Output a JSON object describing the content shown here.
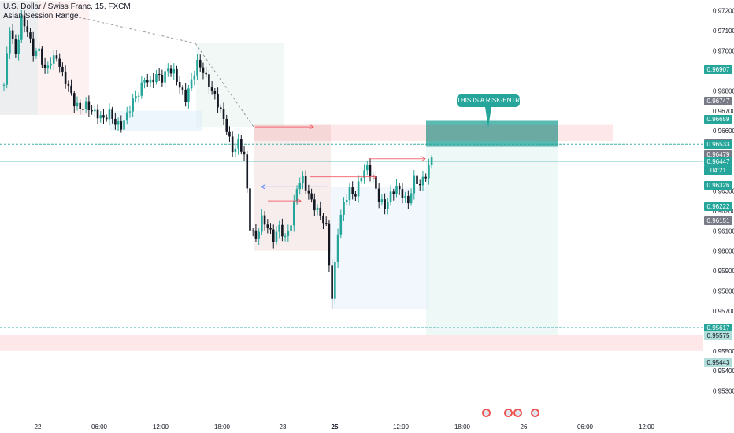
{
  "header": {
    "title": "U.S. Dollar / Swiss Franc, 15, FXCM",
    "indicator": "Asian Session Range"
  },
  "annotation": {
    "callout_text": "THIS IS A RISK-ENTRY"
  },
  "colors": {
    "up": "#26a69a",
    "down": "#131722",
    "zone_red": "#f23645",
    "zone_teal": "#26a69a",
    "zone_blue": "#2962ff",
    "axis_text": "#131722"
  },
  "chart_data": {
    "type": "candlestick",
    "symbol": "USDCHF",
    "timeframe": "15",
    "ylim": [
      0.952,
      0.9725
    ],
    "y_ticks": [
      0.972,
      0.971,
      0.97,
      0.968,
      0.967,
      0.966,
      0.963,
      0.962,
      0.961,
      0.96,
      0.959,
      0.958,
      0.957,
      0.955,
      0.954,
      0.953
    ],
    "x_ticks": [
      "22",
      "06:00",
      "12:00",
      "18:00",
      "23",
      "25",
      "12:00",
      "18:00",
      "26",
      "06:00",
      "12:00"
    ],
    "x_tick_bold": [
      "25"
    ],
    "price_tags": [
      {
        "label": "0.96907",
        "value": 0.96907,
        "style": "teal"
      },
      {
        "label": "0.96747",
        "value": 0.96747,
        "style": "gray"
      },
      {
        "label": "0.96659",
        "value": 0.96659,
        "style": "teal"
      },
      {
        "label": "0.96534",
        "value": 0.96534,
        "style": "gray"
      },
      {
        "label": "0.96533",
        "value": 0.96533,
        "style": "teal"
      },
      {
        "label": "0.96479",
        "value": 0.96479,
        "style": "gray"
      },
      {
        "label": "0.96447",
        "value": 0.96447,
        "style": "teal"
      },
      {
        "label": "0.96326",
        "value": 0.96326,
        "style": "teal"
      },
      {
        "label": "0.96222",
        "value": 0.96222,
        "style": "teal"
      },
      {
        "label": "0.96151",
        "value": 0.96151,
        "style": "gray"
      },
      {
        "label": "0.95617",
        "value": 0.95617,
        "style": "teal"
      },
      {
        "label": "0.95575",
        "value": 0.95575,
        "style": "light"
      },
      {
        "label": "0.95443",
        "value": 0.95443,
        "style": "light"
      }
    ],
    "countdown": "04:21",
    "horizontal_lines": [
      0.96533,
      0.96447,
      0.95617
    ],
    "close_path": [
      [
        0,
        0.9683
      ],
      [
        2,
        0.9712
      ],
      [
        4,
        0.9698
      ],
      [
        6,
        0.9716
      ],
      [
        8,
        0.971
      ],
      [
        10,
        0.9699
      ],
      [
        12,
        0.97
      ],
      [
        14,
        0.969
      ],
      [
        16,
        0.9695
      ],
      [
        18,
        0.9697
      ],
      [
        20,
        0.9688
      ],
      [
        22,
        0.9682
      ],
      [
        24,
        0.9674
      ],
      [
        26,
        0.9671
      ],
      [
        28,
        0.9673
      ],
      [
        30,
        0.967
      ],
      [
        32,
        0.9668
      ],
      [
        34,
        0.9666
      ],
      [
        36,
        0.9669
      ],
      [
        38,
        0.9664
      ],
      [
        40,
        0.9662
      ],
      [
        42,
        0.9668
      ],
      [
        44,
        0.9675
      ],
      [
        46,
        0.9679
      ],
      [
        48,
        0.9686
      ],
      [
        50,
        0.9684
      ],
      [
        52,
        0.9688
      ],
      [
        54,
        0.9686
      ],
      [
        56,
        0.9691
      ],
      [
        58,
        0.9689
      ],
      [
        60,
        0.9682
      ],
      [
        62,
        0.9676
      ],
      [
        64,
        0.9685
      ],
      [
        66,
        0.9694
      ],
      [
        68,
        0.969
      ],
      [
        70,
        0.9683
      ],
      [
        72,
        0.9677
      ],
      [
        74,
        0.967
      ],
      [
        76,
        0.9661
      ],
      [
        78,
        0.965
      ],
      [
        80,
        0.9654
      ],
      [
        82,
        0.9648
      ],
      [
        84,
        0.9612
      ],
      [
        86,
        0.9606
      ],
      [
        88,
        0.9616
      ],
      [
        90,
        0.9612
      ],
      [
        92,
        0.9606
      ],
      [
        94,
        0.9612
      ],
      [
        96,
        0.9606
      ],
      [
        98,
        0.9614
      ],
      [
        100,
        0.9632
      ],
      [
        102,
        0.9636
      ],
      [
        104,
        0.9628
      ],
      [
        106,
        0.9622
      ],
      [
        108,
        0.9618
      ],
      [
        110,
        0.9612
      ],
      [
        112,
        0.9576
      ],
      [
        114,
        0.961
      ],
      [
        116,
        0.9624
      ],
      [
        118,
        0.963
      ],
      [
        120,
        0.9628
      ],
      [
        122,
        0.9638
      ],
      [
        124,
        0.9642
      ],
      [
        126,
        0.9636
      ],
      [
        128,
        0.9626
      ],
      [
        130,
        0.9622
      ],
      [
        132,
        0.9628
      ],
      [
        134,
        0.9632
      ],
      [
        136,
        0.9628
      ],
      [
        138,
        0.9624
      ],
      [
        140,
        0.9636
      ],
      [
        142,
        0.9633
      ],
      [
        144,
        0.9638
      ],
      [
        146,
        0.9646
      ]
    ]
  }
}
